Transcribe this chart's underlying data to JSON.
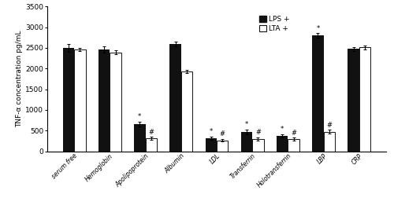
{
  "categories": [
    "serum free",
    "Hemoglobin",
    "Apolipoprotein",
    "Albumin",
    "LDL",
    "Transferrin",
    "Holotransferrin",
    "LBP",
    "CRP"
  ],
  "lps_values": [
    2500,
    2460,
    660,
    2600,
    320,
    470,
    370,
    2800,
    2470
  ],
  "lta_values": [
    2460,
    2390,
    310,
    1930,
    265,
    295,
    295,
    470,
    2510
  ],
  "lps_errors": [
    90,
    70,
    60,
    55,
    40,
    55,
    45,
    55,
    50
  ],
  "lta_errors": [
    45,
    45,
    35,
    45,
    30,
    40,
    35,
    45,
    50
  ],
  "lps_sig_marker": [
    "",
    "",
    "*",
    "",
    "*",
    "*",
    "*",
    "*",
    ""
  ],
  "lta_sig_marker": [
    "",
    "",
    "#",
    "",
    "#",
    "#",
    "#",
    "#",
    ""
  ],
  "ylabel": "TNF-α concentration pg/mL",
  "ylim": [
    0,
    3500
  ],
  "yticks": [
    0,
    500,
    1000,
    1500,
    2000,
    2500,
    3000,
    3500
  ],
  "bar_width": 0.32,
  "lps_color": "#111111",
  "lta_color": "#ffffff",
  "lta_edgecolor": "#111111",
  "legend_labels": [
    "LPS +",
    "LTA +"
  ],
  "background_color": "#ffffff",
  "figsize": [
    5.0,
    2.75
  ],
  "dpi": 100
}
